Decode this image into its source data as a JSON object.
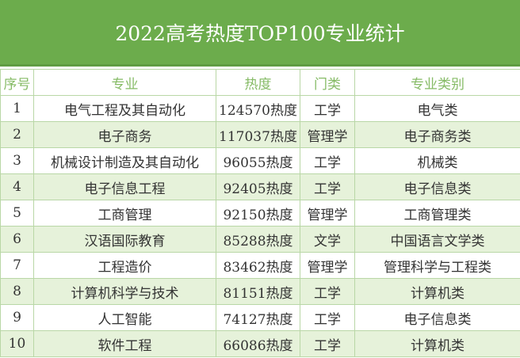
{
  "title": "2022高考热度TOP100专业统计",
  "headers": [
    "序号",
    "专业",
    "热度",
    "门类",
    "专业类别"
  ],
  "rows": [
    [
      "1",
      "电气工程及其自动化",
      "124570热度",
      "工学",
      "电气类"
    ],
    [
      "2",
      "电子商务",
      "117037热度",
      "管理学",
      "电子商务类"
    ],
    [
      "3",
      "机械设计制造及其自动化",
      "96055热度",
      "工学",
      "机械类"
    ],
    [
      "4",
      "电子信息工程",
      "92405热度",
      "工学",
      "电子信息类"
    ],
    [
      "5",
      "工商管理",
      "92150热度",
      "管理学",
      "工商管理类"
    ],
    [
      "6",
      "汉语国际教育",
      "85288热度",
      "文学",
      "中国语言文学类"
    ],
    [
      "7",
      "工程造价",
      "83462热度",
      "管理学",
      "管理科学与工程类"
    ],
    [
      "8",
      "计算机科学与技术",
      "81151热度",
      "工学",
      "计算机类"
    ],
    [
      "9",
      "人工智能",
      "74127热度",
      "工学",
      "电子信息类"
    ],
    [
      "10",
      "软件工程",
      "66086热度",
      "工学",
      "计算机类"
    ]
  ],
  "colors": {
    "title_bg": "#6cac4c",
    "header_text": "#86bb66",
    "stripe": "#e6f2da"
  }
}
